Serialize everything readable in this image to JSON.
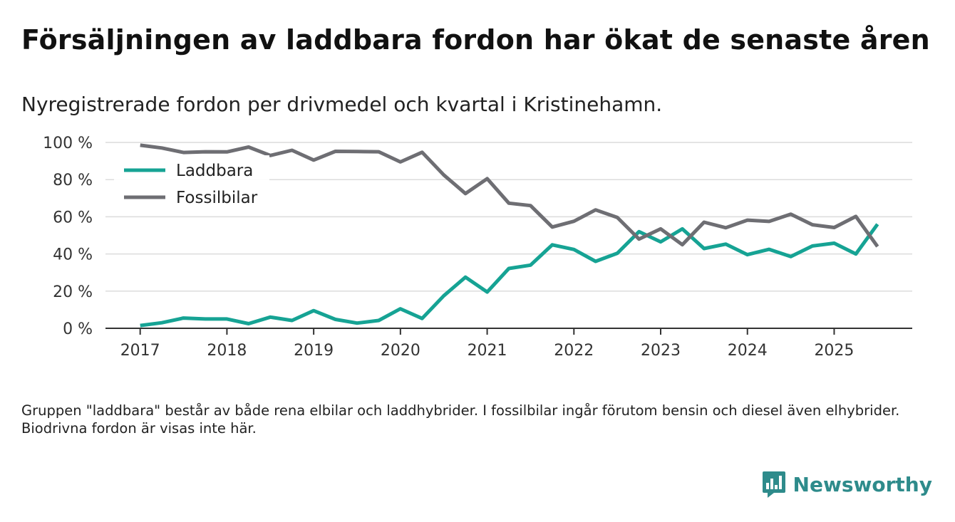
{
  "title": "Försäljningen av laddbara fordon har ökat de senaste åren",
  "subtitle": "Nyregistrerade fordon per drivmedel och kvartal i Kristinehamn.",
  "footnote": "Gruppen \"laddbara\" består av både rena elbilar och laddhybrider. I fossilbilar ingår förutom bensin och diesel även elhybrider. Biodrivna fordon är visas inte här.",
  "brand": {
    "name": "Newsworthy",
    "icon": "bar-chart-icon",
    "color": "#2e8b8b"
  },
  "chart_data": {
    "type": "line",
    "title": "",
    "xlabel": "",
    "ylabel": "",
    "xlim": [
      2016.6,
      2025.9
    ],
    "ylim": [
      0,
      100
    ],
    "y_ticks": [
      0,
      20,
      40,
      60,
      80,
      100
    ],
    "y_tick_labels": [
      "0 %",
      "20 %",
      "40 %",
      "60 %",
      "80 %",
      "100 %"
    ],
    "x_ticks": [
      2017,
      2018,
      2019,
      2020,
      2021,
      2022,
      2023,
      2024,
      2025
    ],
    "x_tick_labels": [
      "2017",
      "2018",
      "2019",
      "2020",
      "2021",
      "2022",
      "2023",
      "2024",
      "2025"
    ],
    "grid": "horizontal",
    "legend_position": "top-left",
    "x": [
      2017.0,
      2017.25,
      2017.5,
      2017.75,
      2018.0,
      2018.25,
      2018.5,
      2018.75,
      2019.0,
      2019.25,
      2019.5,
      2019.75,
      2020.0,
      2020.25,
      2020.5,
      2020.75,
      2021.0,
      2021.25,
      2021.5,
      2021.75,
      2022.0,
      2022.25,
      2022.5,
      2022.75,
      2023.0,
      2023.25,
      2023.5,
      2023.75,
      2024.0,
      2024.25,
      2024.5,
      2024.75,
      2025.0,
      2025.25,
      2025.5
    ],
    "series": [
      {
        "name": "Laddbara",
        "color": "#16a394",
        "values": [
          1.5,
          3,
          5.5,
          5,
          5,
          2.5,
          6,
          4.2,
          9.5,
          4.8,
          2.8,
          4.2,
          10.5,
          5.3,
          17.5,
          27.5,
          19.5,
          32.2,
          34,
          44.9,
          42.4,
          36,
          40.4,
          52,
          46.5,
          53.5,
          42.9,
          45.3,
          39.6,
          42.5,
          38.6,
          44.3,
          45.8,
          40,
          56
        ]
      },
      {
        "name": "Fossilbilar",
        "color": "#6e6e73",
        "values": [
          98.5,
          97,
          94.6,
          95,
          94.9,
          97.5,
          93,
          95.8,
          90.5,
          95.2,
          95.1,
          95,
          89.5,
          94.7,
          82.5,
          72.5,
          80.5,
          67.3,
          66,
          54.5,
          57.6,
          63.7,
          59.6,
          48,
          53.5,
          45,
          57.1,
          54.1,
          58.2,
          57.5,
          61.4,
          55.7,
          54.2,
          60.2,
          44
        ]
      }
    ]
  }
}
